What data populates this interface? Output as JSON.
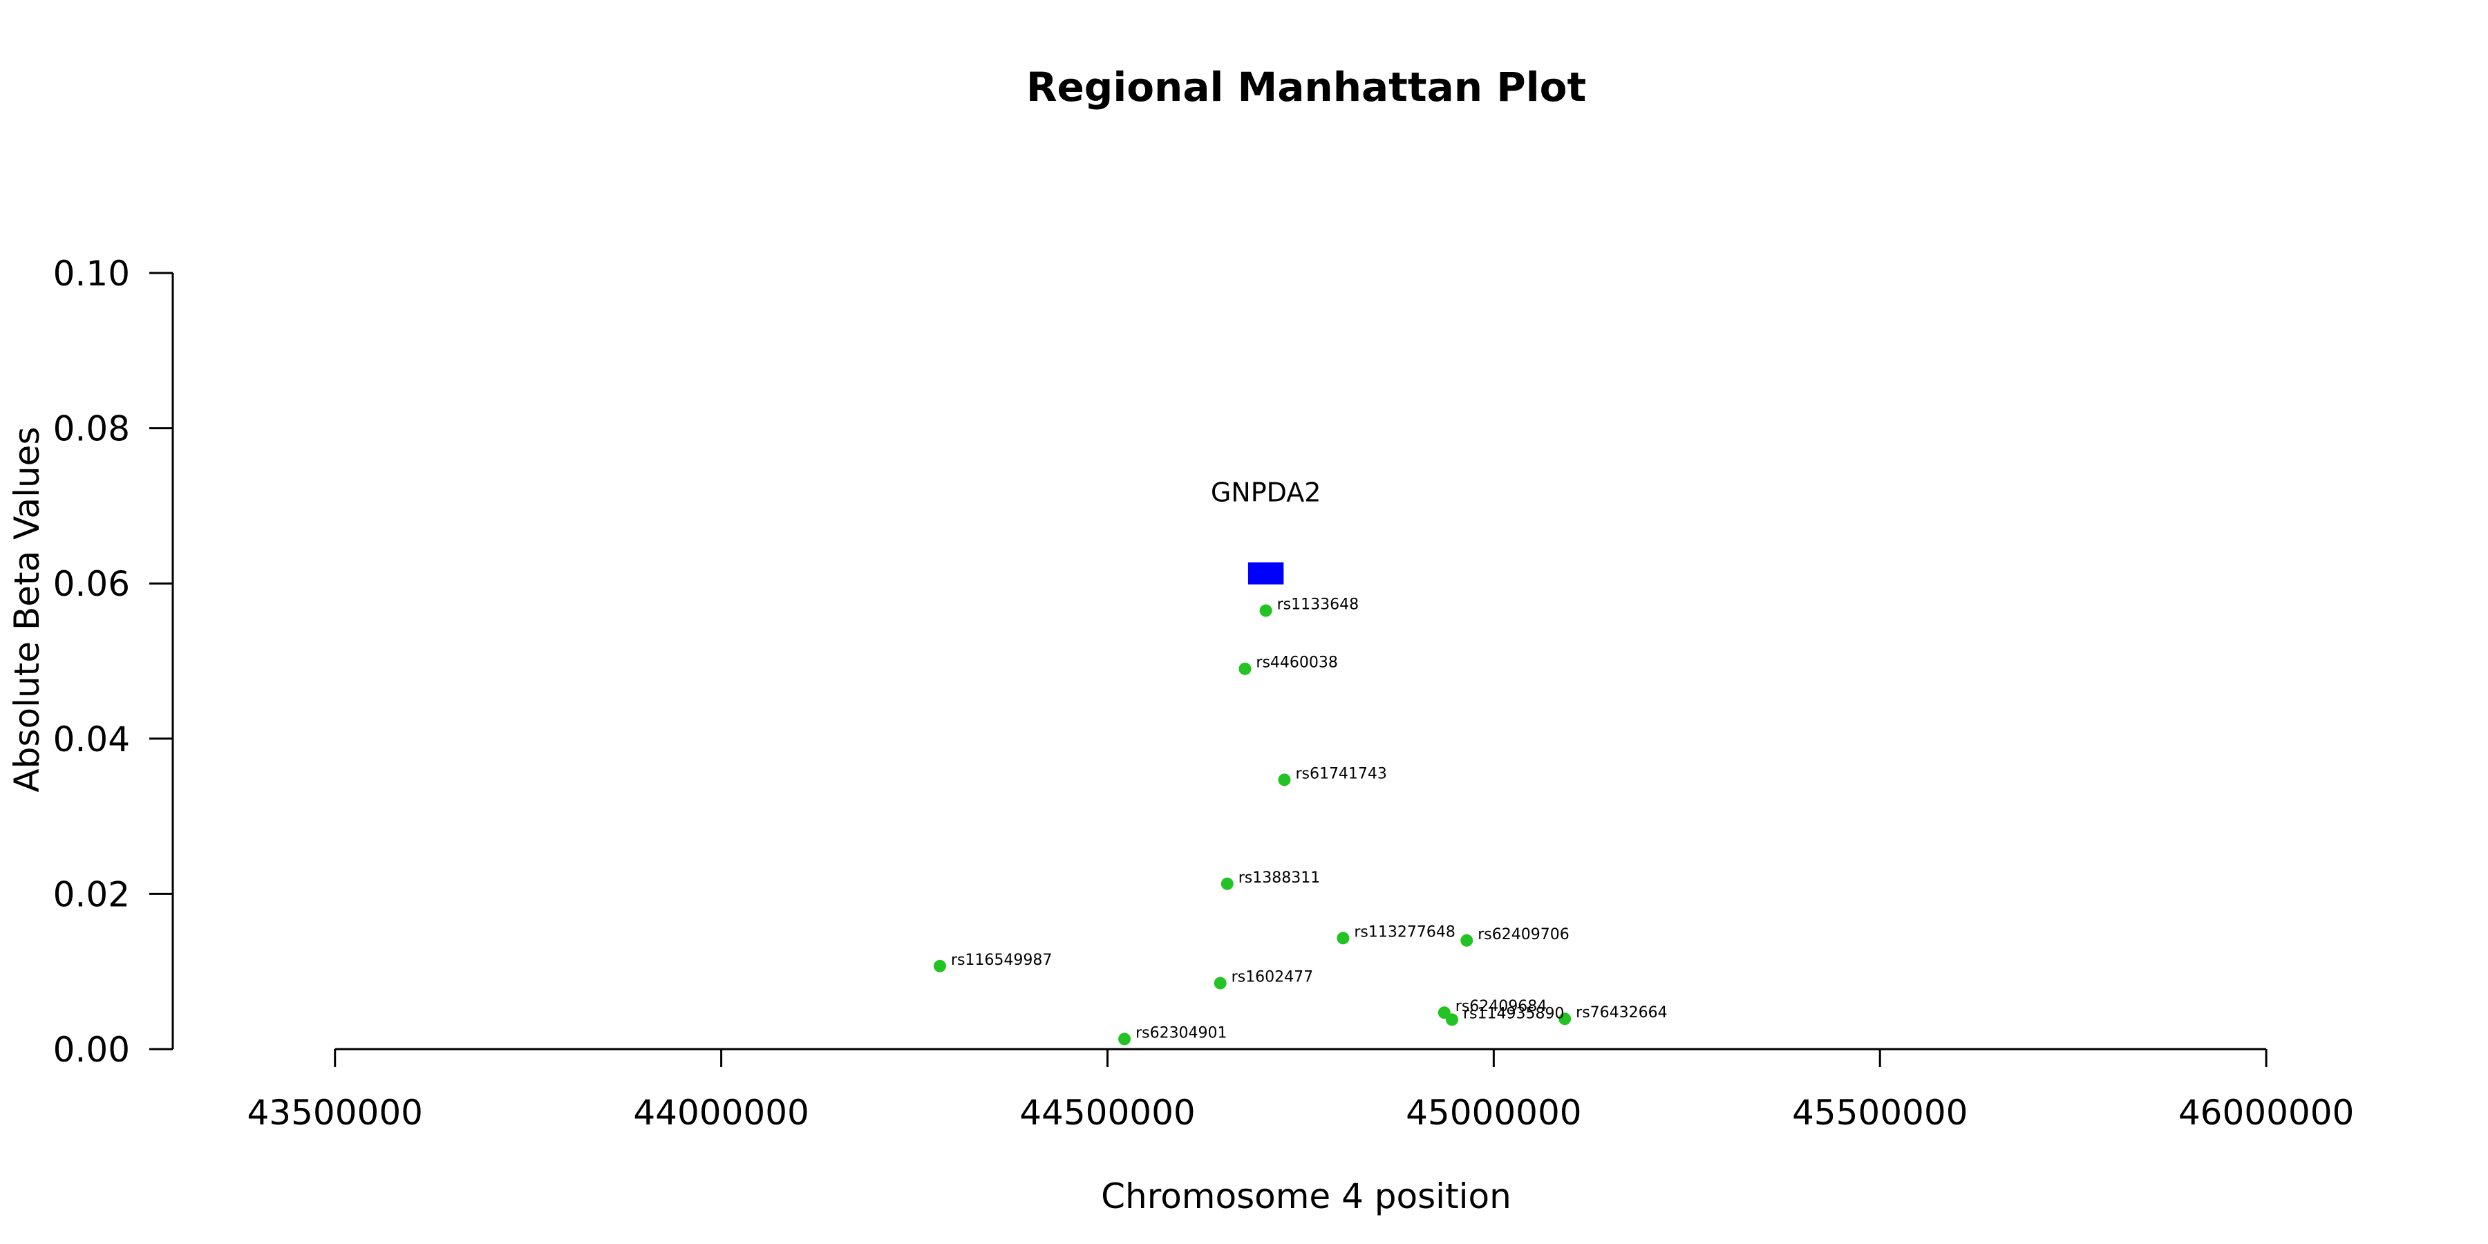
{
  "chart_data": {
    "type": "scatter",
    "title": "Regional Manhattan Plot",
    "xlabel": "Chromosome 4 position",
    "ylabel": "Absolute Beta Values",
    "xlim": [
      43290000,
      46220000
    ],
    "ylim": [
      0,
      0.1
    ],
    "x_ticks": [
      43500000,
      44000000,
      44500000,
      45000000,
      45500000,
      46000000
    ],
    "x_tick_labels": [
      "43500000",
      "44000000",
      "44500000",
      "45000000",
      "45500000",
      "46000000"
    ],
    "y_ticks": [
      0,
      0.02,
      0.04,
      0.06,
      0.08,
      0.1
    ],
    "y_tick_labels": [
      "0.00",
      "0.02",
      "0.04",
      "0.06",
      "0.08",
      "0.10"
    ],
    "point_color": "#22c322",
    "gene_color": "#0000ff",
    "gene": {
      "name": "GNPDA2",
      "start": 44682000,
      "end": 44728000,
      "y_center": 0.0613
    },
    "points": [
      {
        "label": "rs1133648",
        "x": 44705000,
        "y": 0.0565
      },
      {
        "label": "rs4460038",
        "x": 44678000,
        "y": 0.049
      },
      {
        "label": "rs61741743",
        "x": 44729000,
        "y": 0.0347
      },
      {
        "label": "rs1388311",
        "x": 44655000,
        "y": 0.0213
      },
      {
        "label": "rs113277648",
        "x": 44805000,
        "y": 0.0143
      },
      {
        "label": "rs62409706",
        "x": 44965000,
        "y": 0.014
      },
      {
        "label": "rs116549987",
        "x": 44283000,
        "y": 0.0107
      },
      {
        "label": "rs1602477",
        "x": 44646000,
        "y": 0.0085
      },
      {
        "label": "rs62409684",
        "x": 44936000,
        "y": 0.0047
      },
      {
        "label": "rs114935890",
        "x": 44946000,
        "y": 0.0038
      },
      {
        "label": "rs76432664",
        "x": 45092000,
        "y": 0.0039
      },
      {
        "label": "rs62304901",
        "x": 44522000,
        "y": 0.0013
      }
    ]
  }
}
